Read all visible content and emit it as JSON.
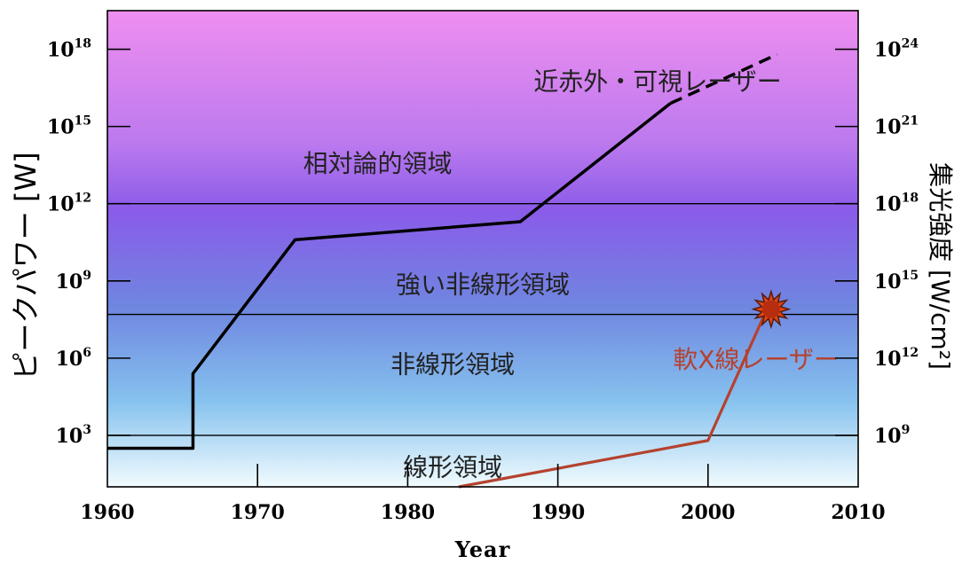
{
  "chart_data": {
    "type": "line",
    "xlabel": "Year",
    "ylabel_left": "ピークパワー [W]",
    "ylabel_right": "集光強度 [W/cm²]",
    "xlim": [
      1960,
      2010
    ],
    "x_ticks": [
      "1960",
      "1970",
      "1980",
      "1990",
      "2000",
      "2010"
    ],
    "ylim_log10_left": [
      1,
      19.5
    ],
    "left_ticks": [
      {
        "base": "10",
        "exp": "3",
        "log": 3
      },
      {
        "base": "10",
        "exp": "6",
        "log": 6
      },
      {
        "base": "10",
        "exp": "9",
        "log": 9
      },
      {
        "base": "10",
        "exp": "12",
        "log": 12
      },
      {
        "base": "10",
        "exp": "15",
        "log": 15
      },
      {
        "base": "10",
        "exp": "18",
        "log": 18
      }
    ],
    "right_ticks": [
      {
        "base": "10",
        "exp": "9",
        "log": 3
      },
      {
        "base": "10",
        "exp": "12",
        "log": 6
      },
      {
        "base": "10",
        "exp": "15",
        "log": 9
      },
      {
        "base": "10",
        "exp": "18",
        "log": 12
      },
      {
        "base": "10",
        "exp": "21",
        "log": 15
      },
      {
        "base": "10",
        "exp": "24",
        "log": 18
      }
    ],
    "region_boundaries_log10": [
      3,
      7.7,
      12
    ],
    "regions": [
      {
        "name": "線形領域",
        "year": 1983,
        "log": 1.7
      },
      {
        "name": "非線形領域",
        "year": 1983,
        "log": 5.7
      },
      {
        "name": "強い非線形領域",
        "year": 1985,
        "log": 8.8
      },
      {
        "name": "相対論的領域",
        "year": 1978,
        "log": 13.5
      }
    ],
    "series": [
      {
        "name": "近赤外・可視レーザー",
        "color": "#000000",
        "x": [
          1960,
          1965.7,
          1965.7,
          1972.5,
          1987.5,
          1997.5
        ],
        "y": [
          2.5,
          2.5,
          5.4,
          10.6,
          11.3,
          15.9
        ],
        "dashed_x": [
          1997.5,
          2004.6
        ],
        "dashed_y": [
          15.9,
          17.8
        ],
        "label_year": 2004.9,
        "label_log": 16.7
      },
      {
        "name": "軟X線レーザー",
        "color": "#b5422f",
        "x": [
          1983.4,
          2000,
          2004
        ],
        "y": [
          1.0,
          2.8,
          8.0
        ],
        "label_year": 2008.7,
        "label_log": 5.9
      }
    ],
    "burst": {
      "year": 2004.2,
      "log": 7.9,
      "color": "#c83618"
    }
  }
}
